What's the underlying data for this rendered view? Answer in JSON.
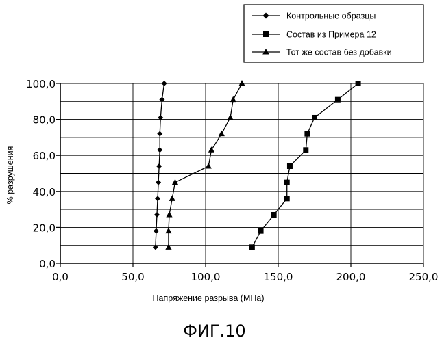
{
  "chart_data": {
    "type": "line",
    "title": "",
    "xlabel": "Напряжение разрыва (МПа)",
    "ylabel": "% разрушения",
    "xlim": [
      0,
      250
    ],
    "ylim": [
      0,
      100
    ],
    "x_ticks": [
      0,
      50,
      100,
      150,
      200,
      250
    ],
    "y_ticks": [
      0,
      20,
      40,
      60,
      80,
      100
    ],
    "x_tick_labels": [
      "0,0",
      "50,0",
      "100,0",
      "150,0",
      "200,0",
      "250,0"
    ],
    "y_tick_labels": [
      "0,0",
      "20,0",
      "40,0",
      "60,0",
      "80,0",
      "100,0"
    ],
    "grid": true,
    "legend_position": "top-right",
    "series": [
      {
        "name": "Контрольные образцы",
        "marker": "diamond",
        "x": [
          65.5,
          66.0,
          66.5,
          67.0,
          67.5,
          68.0,
          68.5,
          68.5,
          69.0,
          70.0,
          71.5
        ],
        "y": [
          9,
          18,
          27,
          36,
          45,
          54,
          63,
          72,
          81,
          91,
          100
        ]
      },
      {
        "name": "Состав из Примера 12",
        "marker": "square",
        "x": [
          132,
          138,
          147,
          156,
          156,
          158,
          169,
          170,
          175,
          191,
          205
        ],
        "y": [
          9,
          18,
          27,
          36,
          45,
          54,
          63,
          72,
          81,
          91,
          100
        ]
      },
      {
        "name": "Тот же состав без добавки",
        "marker": "triangle",
        "x": [
          74.5,
          74.5,
          75.0,
          77.0,
          79.0,
          102.0,
          104.0,
          111.0,
          117.0,
          119.0,
          125.0
        ],
        "y": [
          9,
          18,
          27,
          36,
          45,
          54,
          63,
          72,
          81,
          91,
          100
        ]
      }
    ]
  },
  "caption": "ФИГ.10"
}
